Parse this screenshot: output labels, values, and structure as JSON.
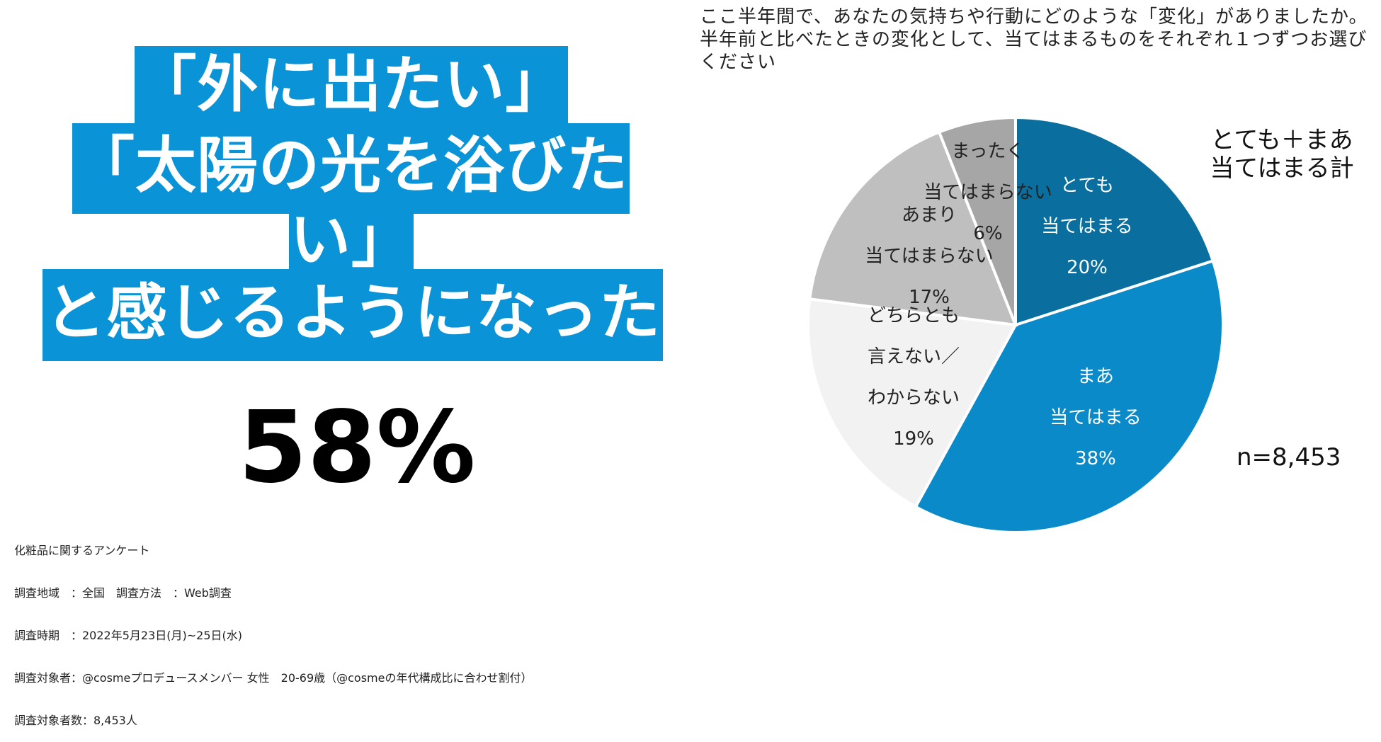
{
  "headline": {
    "line1": "「外に出たい」",
    "line2": "「太陽の光を浴びた",
    "line3": "い」",
    "line4": "と感じるようになった"
  },
  "big_percent": "58%",
  "survey_info": [
    "化粧品に関するアンケート",
    "調査地域　：全国　調査方法　：Web調査",
    "調査時期　：2022年5月23日(月)~25日(水)",
    "調査対象者：@cosmeプロデュースメンバー 女性　20-69歳（@cosmeの年代構成比に合わせ割付）",
    "調査対象者数：8,453人"
  ],
  "question": "ここ半年間で、あなたの気持ちや行動にどのような「変化」がありましたか。半年前と比べたときの変化として、当てはまるものをそれぞれ１つずつお選びください",
  "total_label": "とても＋まあ\n当てはまる計",
  "n_label": "n=8,453",
  "colors": {
    "accent": "#0a93d6",
    "slice_very": "#0a6f9e",
    "slice_somewhat": "#0a8ac8",
    "slice_neither": "#f2f2f2",
    "slice_not_much": "#bfbfbf",
    "slice_not_at_all": "#a6a6a6"
  },
  "chart_data": {
    "type": "pie",
    "title": "",
    "slices": [
      {
        "label": "とても\n当てはまる\n20%",
        "value": 20,
        "color": "#0a6f9e",
        "text_color": "#ffffff"
      },
      {
        "label": "まあ\n当てはまる\n38%",
        "value": 38,
        "color": "#0a8ac8",
        "text_color": "#ffffff"
      },
      {
        "label": "どちらとも\n言えない／\nわからない\n19%",
        "value": 19,
        "color": "#f2f2f2",
        "text_color": "#222222"
      },
      {
        "label": "あまり\n当てはまらない\n17%",
        "value": 17,
        "color": "#bfbfbf",
        "text_color": "#222222"
      },
      {
        "label": "まったく\n当てはまらない\n6%",
        "value": 6,
        "color": "#a6a6a6",
        "text_color": "#222222"
      }
    ]
  }
}
